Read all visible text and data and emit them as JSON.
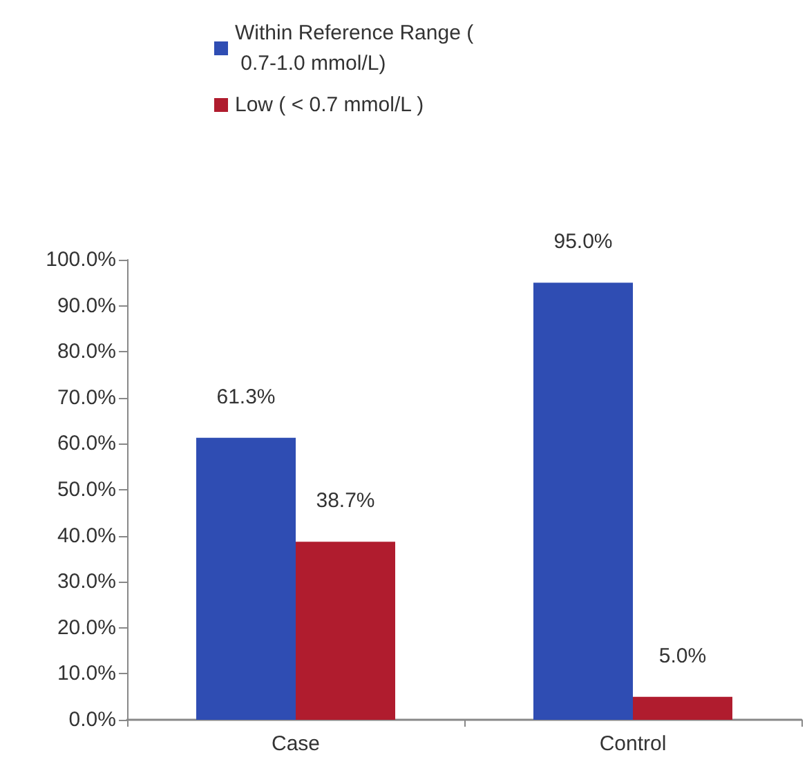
{
  "chart_data": {
    "type": "bar",
    "categories": [
      "Case",
      "Control"
    ],
    "series": [
      {
        "name": "Within Reference Range ( 0.7-1.0 mmol/L)",
        "color": "#2f4db3",
        "values": [
          61.3,
          95.0
        ],
        "value_labels": [
          "61.3%",
          "95.0%"
        ]
      },
      {
        "name": "Low ( < 0.7 mmol/L )",
        "color": "#b01c2e",
        "values": [
          38.7,
          5.0
        ],
        "value_labels": [
          "38.7%",
          "5.0%"
        ]
      }
    ],
    "ylim": [
      0,
      100
    ],
    "yticks": [
      {
        "value": 0,
        "label": "0.0%"
      },
      {
        "value": 10,
        "label": "10.0%"
      },
      {
        "value": 20,
        "label": "20.0%"
      },
      {
        "value": 30,
        "label": "30.0%"
      },
      {
        "value": 40,
        "label": "40.0%"
      },
      {
        "value": 50,
        "label": "50.0%"
      },
      {
        "value": 60,
        "label": "60.0%"
      },
      {
        "value": 70,
        "label": "70.0%"
      },
      {
        "value": 80,
        "label": "80.0%"
      },
      {
        "value": 90,
        "label": "90.0%"
      },
      {
        "value": 100,
        "label": "100.0%"
      }
    ],
    "grid": false,
    "legend": "top"
  }
}
